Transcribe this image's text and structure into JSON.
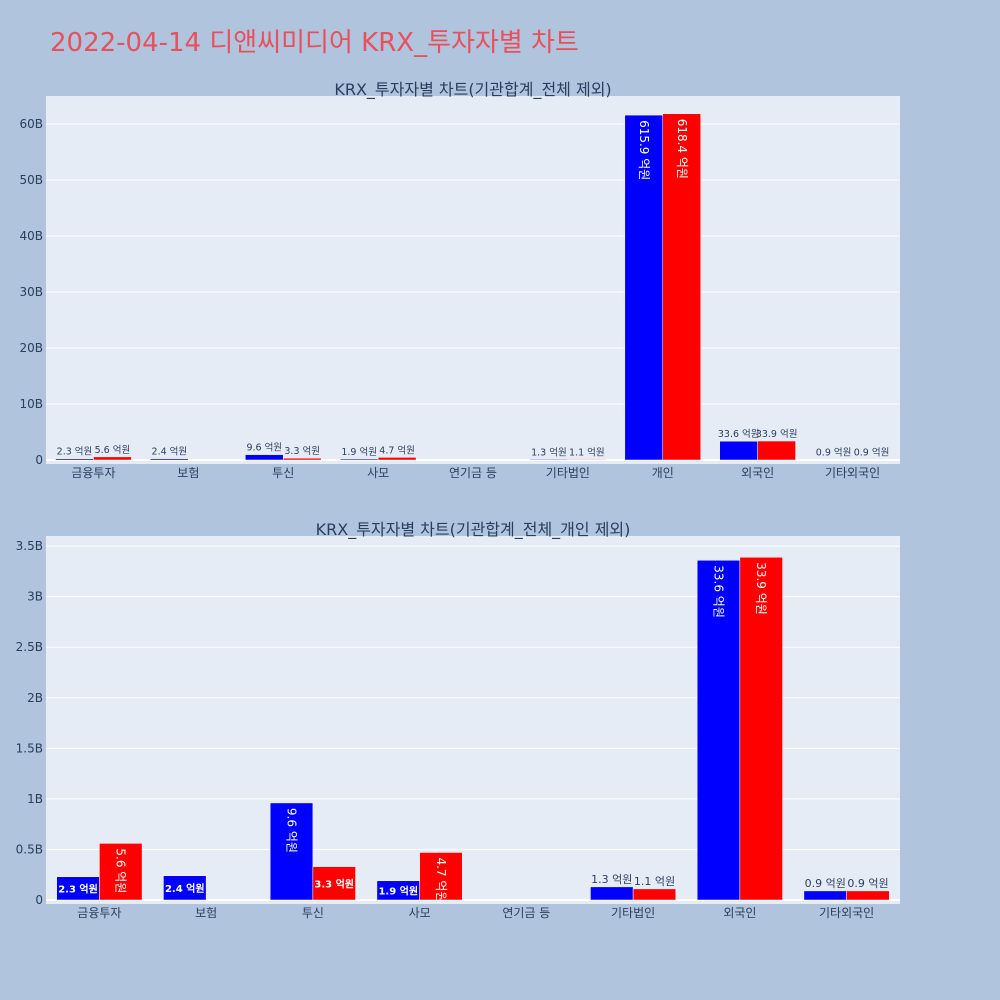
{
  "page_title": "2022-04-14 디앤씨미디어 KRX_투자자별 차트",
  "chart_data": [
    {
      "type": "bar",
      "title": "KRX_투자자별 차트(기관합계_전체 제외)",
      "categories": [
        "금융투자",
        "보험",
        "투신",
        "사모",
        "연기금 등",
        "기타법인",
        "개인",
        "외국인",
        "기타외국인"
      ],
      "series": [
        {
          "color": "#0000ff",
          "values": [
            230000000,
            240000000,
            960000000,
            190000000,
            0,
            130000000,
            61590000000,
            3360000000,
            90000000
          ],
          "labels": [
            "2.3 억원",
            "2.4 억원",
            "9.6 억원",
            "1.9 억원",
            "",
            "1.3 억원",
            "615.9 억원",
            "33.6 억원",
            "0.9 억원"
          ]
        },
        {
          "color": "#ff0000",
          "values": [
            560000000,
            0,
            330000000,
            470000000,
            0,
            110000000,
            61840000000,
            3390000000,
            90000000
          ],
          "labels": [
            "5.6 억원",
            "",
            "3.3 억원",
            "4.7 억원",
            "",
            "1.1 억원",
            "618.4 억원",
            "33.9 억원",
            "0.9 억원"
          ]
        }
      ],
      "ylim": [
        0,
        65000000000
      ],
      "yticks": [
        0,
        10000000000,
        20000000000,
        30000000000,
        40000000000,
        50000000000,
        60000000000
      ],
      "ytick_labels": [
        "0",
        "10B",
        "20B",
        "30B",
        "40B",
        "50B",
        "60B"
      ],
      "grid": true
    },
    {
      "type": "bar",
      "title": "KRX_투자자별 차트(기관합계_전체_개인 제외)",
      "categories": [
        "금융투자",
        "보험",
        "투신",
        "사모",
        "연기금 등",
        "기타법인",
        "외국인",
        "기타외국인"
      ],
      "series": [
        {
          "color": "#0000ff",
          "values": [
            230000000,
            240000000,
            960000000,
            190000000,
            0,
            130000000,
            3360000000,
            90000000
          ],
          "labels": [
            "2.3 억원",
            "2.4 억원",
            "9.6 억원",
            "1.9 억원",
            "",
            "1.3 억원",
            "33.6 억원",
            "0.9 억원"
          ]
        },
        {
          "color": "#ff0000",
          "values": [
            560000000,
            0,
            330000000,
            470000000,
            0,
            110000000,
            3390000000,
            90000000
          ],
          "labels": [
            "5.6 억원",
            "",
            "3.3 억원",
            "4.7 억원",
            "",
            "1.1 억원",
            "33.9 억원",
            "0.9 억원"
          ]
        }
      ],
      "ylim": [
        0,
        3600000000
      ],
      "yticks": [
        0,
        500000000,
        1000000000,
        1500000000,
        2000000000,
        2500000000,
        3000000000,
        3500000000
      ],
      "ytick_labels": [
        "0",
        "0.5B",
        "1B",
        "1.5B",
        "2B",
        "2.5B",
        "3B",
        "3.5B"
      ],
      "grid": true
    }
  ]
}
